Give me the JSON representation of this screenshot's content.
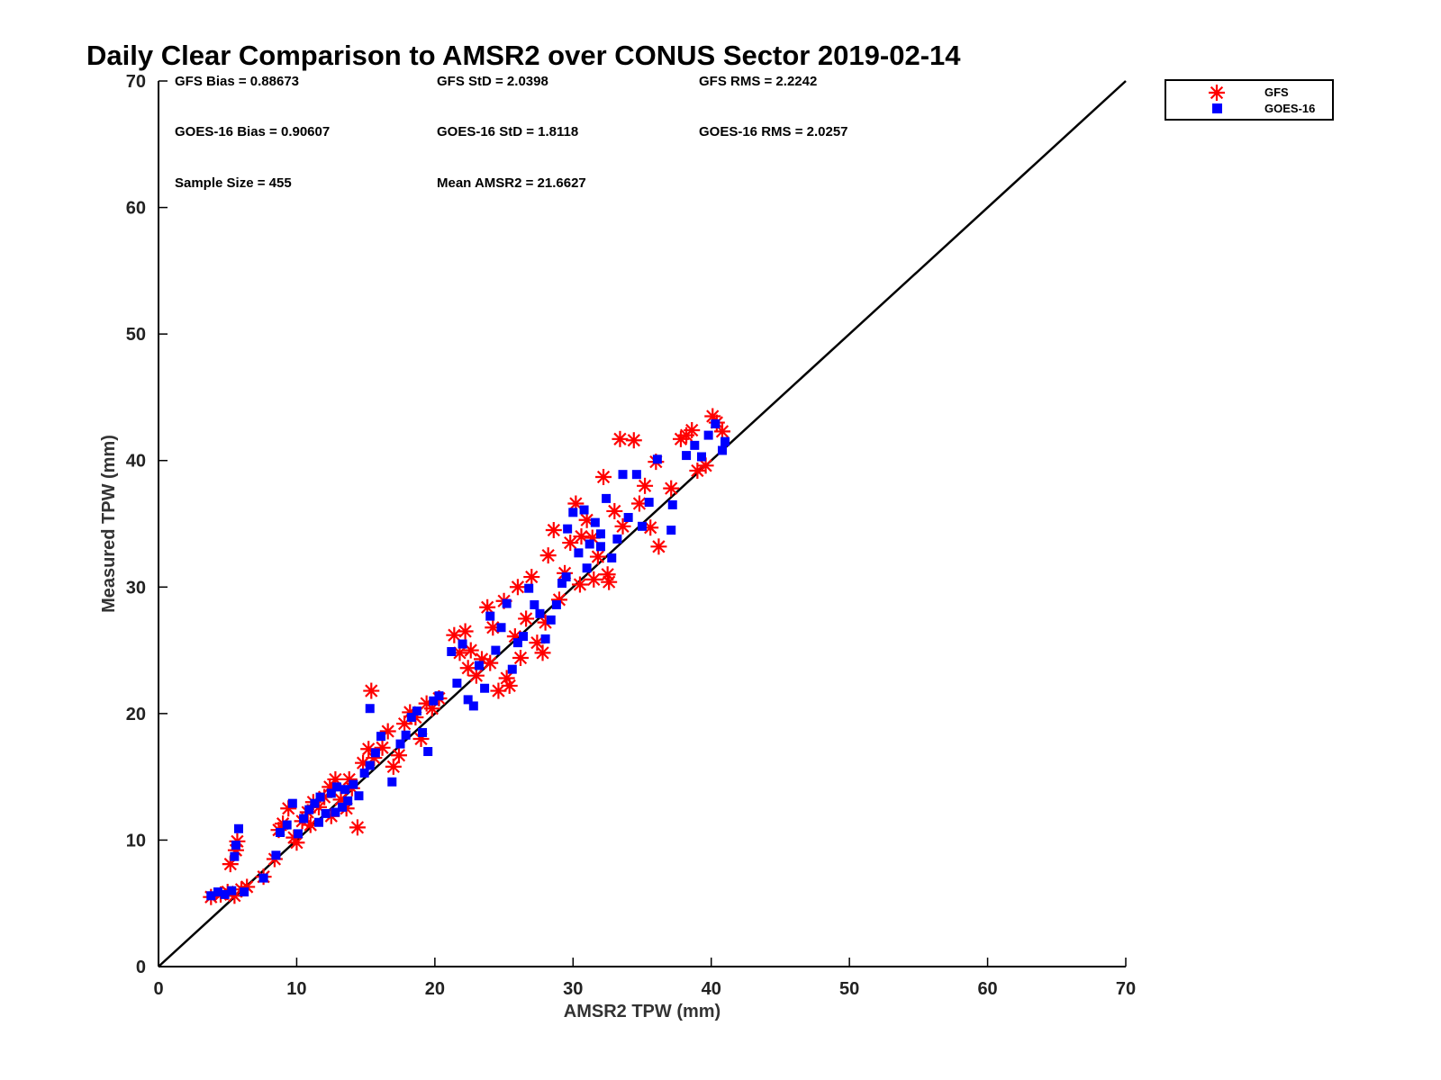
{
  "chart_data": {
    "type": "scatter",
    "title": "Daily Clear Comparison to AMSR2 over CONUS Sector 2019-02-14",
    "xlabel": "AMSR2 TPW (mm)",
    "ylabel": "Measured TPW (mm)",
    "xlim": [
      0,
      70
    ],
    "ylim": [
      0,
      70
    ],
    "xticks": [
      "0",
      "10",
      "20",
      "30",
      "40",
      "50",
      "60",
      "70"
    ],
    "yticks": [
      "0",
      "10",
      "20",
      "30",
      "40",
      "50",
      "60",
      "70"
    ],
    "grid": false,
    "legend_position": "outside top-right",
    "reference_line": {
      "x": [
        0,
        70
      ],
      "y": [
        0,
        70
      ]
    },
    "stats": {
      "gfs_bias": "GFS Bias = 0.88673",
      "gfs_std": "GFS StD = 2.0398",
      "gfs_rms": "GFS RMS = 2.2242",
      "goes_bias": "GOES-16 Bias = 0.90607",
      "goes_std": "GOES-16 StD = 1.8118",
      "goes_rms": "GOES-16 RMS = 2.0257",
      "sample_size": "Sample Size = 455",
      "mean_amsr2": "Mean AMSR2 = 21.6627"
    },
    "series": [
      {
        "name": "GFS",
        "marker": "asterisk",
        "color": "#ff0000",
        "x": [
          3.8,
          4.5,
          5.0,
          5.5,
          6.0,
          6.4,
          5.2,
          5.6,
          5.7,
          7.6,
          8.4,
          8.7,
          9.0,
          9.4,
          9.8,
          10.0,
          10.4,
          10.8,
          11.2,
          11.6,
          12.0,
          12.4,
          12.8,
          13.2,
          13.6,
          14.0,
          14.4,
          14.8,
          15.2,
          15.6,
          15.4,
          16.2,
          16.6,
          17.0,
          17.4,
          17.8,
          18.2,
          18.6,
          19.0,
          19.4,
          19.8,
          20.3,
          21.4,
          21.8,
          22.2,
          22.6,
          23.0,
          23.4,
          23.8,
          24.2,
          24.6,
          25.0,
          25.4,
          25.8,
          26.2,
          26.6,
          27.0,
          27.4,
          27.8,
          28.2,
          28.6,
          29.0,
          29.4,
          29.8,
          30.2,
          30.6,
          31.0,
          31.4,
          31.8,
          32.2,
          32.6,
          33.0,
          33.4,
          33.6,
          34.4,
          34.8,
          35.2,
          35.6,
          36.0,
          36.2,
          37.1,
          37.8,
          38.2,
          38.6,
          39.0,
          39.6,
          40.1,
          40.4,
          40.8,
          28.0,
          26.0,
          24.0,
          30.5,
          31.5,
          32.5,
          12.5,
          13.8,
          11.0,
          22.4,
          25.2
        ],
        "y": [
          5.5,
          5.7,
          5.9,
          5.6,
          6.1,
          6.3,
          8.1,
          9.2,
          9.9,
          7.1,
          8.5,
          10.8,
          11.3,
          12.5,
          10.2,
          9.8,
          11.5,
          12.2,
          13.0,
          12.6,
          13.4,
          14.2,
          14.8,
          13.2,
          12.5,
          14.1,
          11.0,
          16.1,
          17.2,
          16.5,
          21.8,
          17.3,
          18.6,
          15.8,
          16.7,
          19.2,
          20.1,
          19.7,
          18.0,
          20.8,
          20.4,
          21.2,
          26.2,
          24.8,
          26.5,
          25.0,
          23.0,
          24.3,
          28.4,
          26.8,
          21.8,
          28.9,
          22.2,
          26.1,
          24.4,
          27.5,
          30.8,
          25.6,
          24.8,
          32.5,
          34.5,
          29.0,
          31.1,
          33.5,
          36.6,
          34.0,
          35.3,
          33.9,
          32.4,
          38.7,
          30.4,
          36.0,
          41.7,
          34.8,
          41.6,
          36.6,
          38.0,
          34.7,
          39.9,
          33.2,
          37.8,
          41.7,
          42.0,
          42.4,
          39.2,
          39.6,
          43.5,
          43.0,
          42.3,
          27.2,
          30.0,
          24.0,
          30.2,
          30.6,
          31.0,
          11.9,
          14.8,
          11.2,
          23.6,
          22.8
        ]
      },
      {
        "name": "GOES-16",
        "marker": "square",
        "color": "#0000ff",
        "x": [
          3.8,
          4.3,
          4.8,
          5.3,
          5.8,
          6.2,
          5.6,
          5.5,
          7.6,
          8.5,
          8.8,
          9.3,
          9.7,
          10.1,
          10.5,
          10.9,
          11.3,
          11.7,
          12.1,
          12.5,
          12.9,
          13.3,
          13.7,
          14.1,
          14.5,
          14.9,
          15.3,
          15.7,
          16.1,
          16.9,
          15.3,
          17.5,
          17.9,
          18.3,
          18.7,
          19.1,
          19.5,
          19.9,
          20.3,
          21.2,
          21.6,
          22.0,
          22.4,
          22.8,
          23.2,
          23.6,
          24.0,
          24.4,
          24.8,
          25.2,
          25.6,
          26.0,
          26.4,
          26.8,
          27.2,
          27.6,
          28.0,
          28.4,
          28.8,
          29.2,
          29.6,
          30.0,
          30.4,
          30.8,
          31.2,
          31.6,
          32.0,
          32.4,
          32.8,
          33.2,
          33.6,
          34.0,
          34.6,
          35.0,
          35.5,
          36.1,
          37.1,
          37.2,
          38.2,
          38.8,
          39.3,
          39.8,
          40.3,
          40.8,
          41.0,
          31.0,
          29.5,
          32.0,
          12.8,
          13.5,
          11.6
        ],
        "y": [
          5.6,
          5.9,
          5.7,
          6.0,
          10.9,
          5.9,
          9.6,
          8.7,
          7.0,
          8.8,
          10.6,
          11.2,
          12.9,
          10.5,
          11.7,
          12.4,
          12.9,
          13.4,
          12.1,
          13.7,
          14.2,
          12.6,
          13.1,
          14.4,
          13.5,
          15.3,
          15.9,
          16.9,
          18.2,
          14.6,
          20.4,
          17.6,
          18.3,
          19.7,
          20.2,
          18.5,
          17.0,
          21.0,
          21.4,
          24.9,
          22.4,
          25.5,
          21.1,
          20.6,
          23.8,
          22.0,
          27.7,
          25.0,
          26.8,
          28.7,
          23.5,
          25.6,
          26.1,
          29.9,
          28.6,
          27.9,
          25.9,
          27.4,
          28.6,
          30.3,
          34.6,
          35.9,
          32.7,
          36.1,
          33.4,
          35.1,
          34.2,
          37.0,
          32.3,
          33.8,
          38.9,
          35.5,
          38.9,
          34.8,
          36.7,
          40.1,
          34.5,
          36.5,
          40.4,
          41.2,
          40.3,
          42.0,
          42.9,
          40.8,
          41.5,
          31.5,
          30.8,
          33.2,
          12.2,
          14.0,
          11.4
        ]
      }
    ]
  }
}
